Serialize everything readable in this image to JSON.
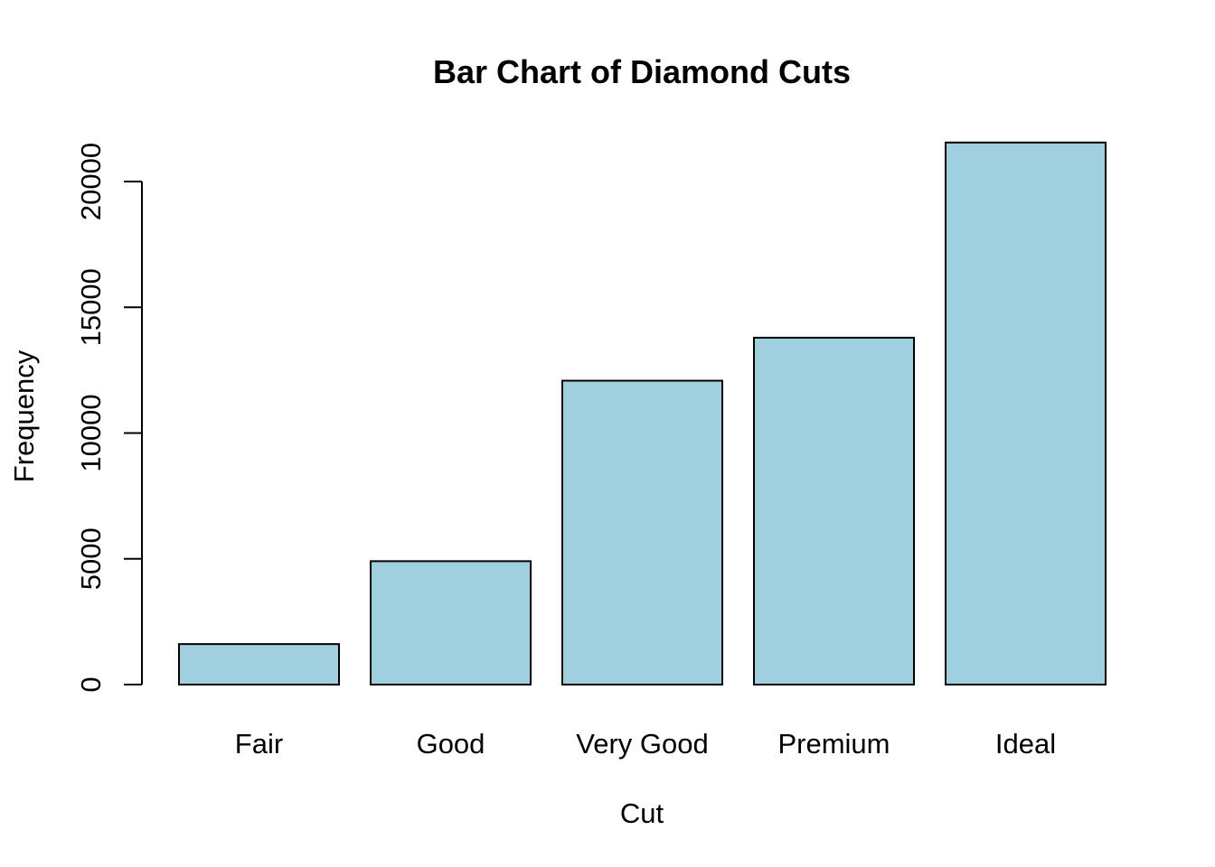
{
  "chart_data": {
    "type": "bar",
    "title": "Bar Chart of Diamond Cuts",
    "xlabel": "Cut",
    "ylabel": "Frequency",
    "categories": [
      "Fair",
      "Good",
      "Very Good",
      "Premium",
      "Ideal"
    ],
    "values": [
      1610,
      4906,
      12082,
      13791,
      21551
    ],
    "ylim": [
      0,
      21551
    ],
    "yticks": [
      0,
      5000,
      10000,
      15000,
      20000
    ],
    "bar_color": "#a0cfe0",
    "bar_border_color": "#000000",
    "grid": false
  }
}
